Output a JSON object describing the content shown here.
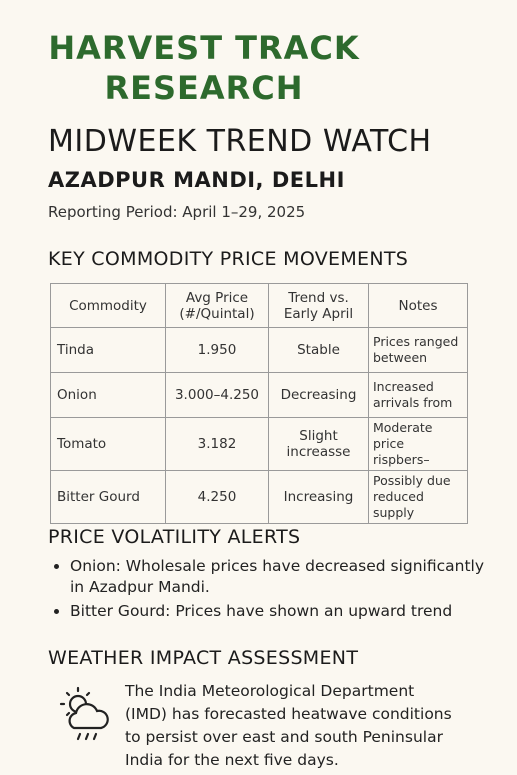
{
  "header": {
    "brand_lines": [
      "HARVEST TRACK",
      "RESEARCH"
    ],
    "title": "MIDWEEK TREND WATCH",
    "subtitle": "AZADPUR MANDI, DELHI",
    "period": "Reporting Period: April 1–29, 2025"
  },
  "prices": {
    "heading": "KEY COMMODITY PRICE MOVEMENTS",
    "table": {
      "columns": [
        "Commodity",
        "Avg Price (#/Quintal)",
        "Trend vs. Early April",
        "Notes"
      ],
      "rows": [
        [
          "Tinda",
          "1.950",
          "Stable",
          "Prices ranged between"
        ],
        [
          "Onion",
          "3.000–4.250",
          "Decreasing",
          "Increased arrivals from"
        ],
        [
          "Tomato",
          "3.182",
          "Slight increasse",
          "Moderate price rispbers–"
        ],
        [
          "Bitter Gourd",
          "4.250",
          "Increasing",
          "Possibly due reduced supply"
        ]
      ]
    }
  },
  "alerts": {
    "heading": "PRICE VOLATILITY ALERTS",
    "items": [
      {
        "lead": "Onion:",
        "text": "Wholesale prices have decreased significantly in Azadpur Mandi."
      },
      {
        "lead": "Bitter Gourd:",
        "text": "Prices have shown an upward trend"
      }
    ]
  },
  "weather": {
    "heading": "WEATHER IMPACT ASSESSMENT",
    "text": "The India Meteorological Department (IMD) has forecasted heatwave conditions to persist over east and south Peninsular India for the next five days."
  }
}
